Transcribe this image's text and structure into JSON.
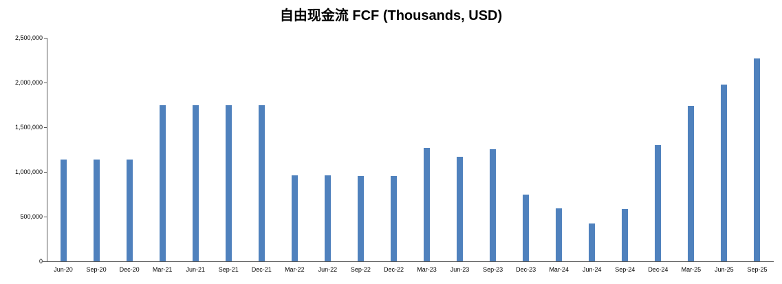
{
  "chart_data": {
    "type": "bar",
    "title": "自由现金流 FCF (Thousands, USD)",
    "categories": [
      "Jun-20",
      "Sep-20",
      "Dec-20",
      "Mar-21",
      "Jun-21",
      "Sep-21",
      "Dec-21",
      "Mar-22",
      "Jun-22",
      "Sep-22",
      "Dec-22",
      "Mar-23",
      "Jun-23",
      "Sep-23",
      "Dec-23",
      "Mar-24",
      "Jun-24",
      "Sep-24",
      "Dec-24",
      "Mar-25",
      "Jun-25",
      "Sep-25"
    ],
    "values": [
      1140000,
      1140000,
      1140000,
      1745000,
      1745000,
      1745000,
      1750000,
      960000,
      960000,
      955000,
      955000,
      1270000,
      1170000,
      1255000,
      750000,
      595000,
      420000,
      585000,
      1300000,
      1740000,
      1980000,
      2270000
    ],
    "xlabel": "",
    "ylabel": "",
    "ylim": [
      0,
      2500000
    ],
    "yticks": [
      0,
      500000,
      1000000,
      1500000,
      2000000,
      2500000
    ],
    "grid": false,
    "legend": "none",
    "bar_color": "#4F81BD"
  }
}
